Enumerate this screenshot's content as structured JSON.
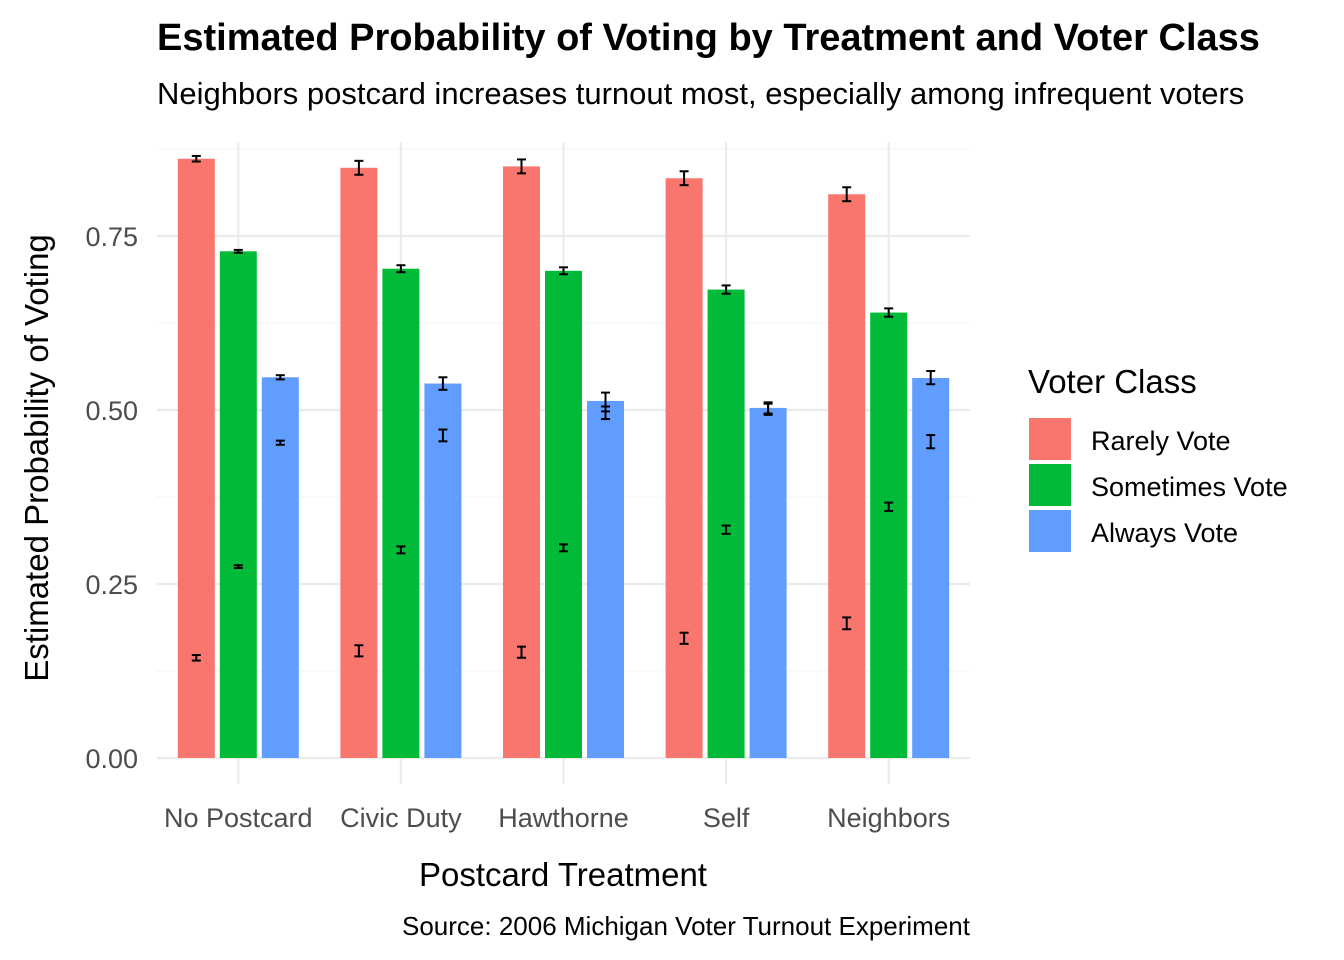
{
  "chart_data": {
    "type": "bar",
    "title": "Estimated Probability of Voting by Treatment and Voter Class",
    "subtitle": "Neighbors postcard increases turnout most, especially among infrequent voters",
    "caption": "Source: 2006 Michigan Voter Turnout Experiment",
    "xlabel": "Postcard Treatment",
    "ylabel": "Estimated Probability of Voting",
    "ylim": [
      0,
      0.88
    ],
    "yticks": [
      0,
      0.25,
      0.5,
      0.75
    ],
    "ytick_labels": [
      "0.00",
      "0.25",
      "0.50",
      "0.75"
    ],
    "grid": true,
    "legend": {
      "title": "Voter Class",
      "position": "right"
    },
    "categories": [
      "No Postcard",
      "Civic Duty",
      "Hawthorne",
      "Self",
      "Neighbors"
    ],
    "series": [
      {
        "name": "Rarely Vote",
        "color": "#F8766D",
        "values": [
          0.861,
          0.848,
          0.85,
          0.833,
          0.81
        ],
        "ci": [
          [
            0.857,
            0.865
          ],
          [
            0.838,
            0.858
          ],
          [
            0.84,
            0.86
          ],
          [
            0.823,
            0.843
          ],
          [
            0.8,
            0.82
          ]
        ],
        "low_ci": [
          [
            0.14,
            0.148
          ],
          [
            0.146,
            0.162
          ],
          [
            0.144,
            0.16
          ],
          [
            0.164,
            0.18
          ],
          [
            0.185,
            0.202
          ]
        ]
      },
      {
        "name": "Sometimes Vote",
        "color": "#00BA38",
        "values": [
          0.728,
          0.703,
          0.7,
          0.673,
          0.64
        ],
        "ci": [
          [
            0.726,
            0.73
          ],
          [
            0.698,
            0.708
          ],
          [
            0.695,
            0.705
          ],
          [
            0.667,
            0.679
          ],
          [
            0.634,
            0.646
          ]
        ],
        "low_ci": [
          [
            0.273,
            0.277
          ],
          [
            0.294,
            0.304
          ],
          [
            0.297,
            0.307
          ],
          [
            0.322,
            0.334
          ],
          [
            0.355,
            0.367
          ]
        ]
      },
      {
        "name": "Always Vote",
        "color": "#619CFF",
        "values": [
          0.547,
          0.538,
          0.513,
          0.503,
          0.546
        ],
        "ci": [
          [
            0.544,
            0.55
          ],
          [
            0.529,
            0.547
          ],
          [
            0.498,
            0.525
          ],
          [
            0.495,
            0.511
          ],
          [
            0.537,
            0.556
          ]
        ],
        "low_ci": [
          [
            0.45,
            0.456
          ],
          [
            0.455,
            0.472
          ],
          [
            0.487,
            0.505
          ],
          [
            0.493,
            0.509
          ],
          [
            0.445,
            0.464
          ]
        ]
      }
    ]
  }
}
